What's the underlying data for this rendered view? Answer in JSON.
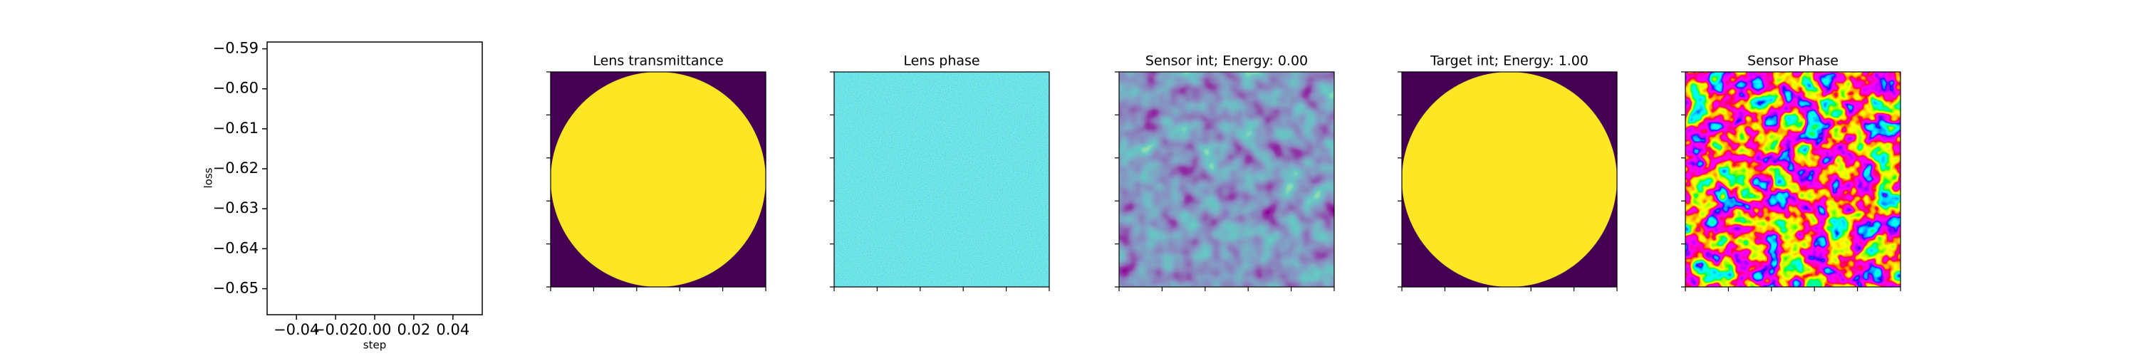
{
  "chart_data": {
    "type": "line",
    "xlabel": "step",
    "ylabel": "loss",
    "xlim": [
      -0.055,
      0.055
    ],
    "xticks": [
      {
        "value": -0.04,
        "label": "−0.04"
      },
      {
        "value": -0.02,
        "label": "−0.02"
      },
      {
        "value": 0,
        "label": "0.00"
      },
      {
        "value": 0.02,
        "label": "0.02"
      },
      {
        "value": 0.04,
        "label": "0.04"
      }
    ],
    "ylim": [
      -0.6565,
      -0.5883
    ],
    "yticks": [
      {
        "value": -0.59,
        "label": "−0.59"
      },
      {
        "value": -0.6,
        "label": "−0.60"
      },
      {
        "value": -0.61,
        "label": "−0.61"
      },
      {
        "value": -0.62,
        "label": "−0.62"
      },
      {
        "value": -0.63,
        "label": "−0.63"
      },
      {
        "value": -0.64,
        "label": "−0.64"
      },
      {
        "value": -0.65,
        "label": "−0.65"
      }
    ],
    "grid": false
  },
  "images": [
    {
      "title": "Lens transmittance"
    },
    {
      "title": "Lens phase"
    },
    {
      "title": "Sensor int; Energy: 0.00"
    },
    {
      "title": "Target int; Energy: 1.00"
    },
    {
      "title": "Sensor Phase"
    }
  ]
}
